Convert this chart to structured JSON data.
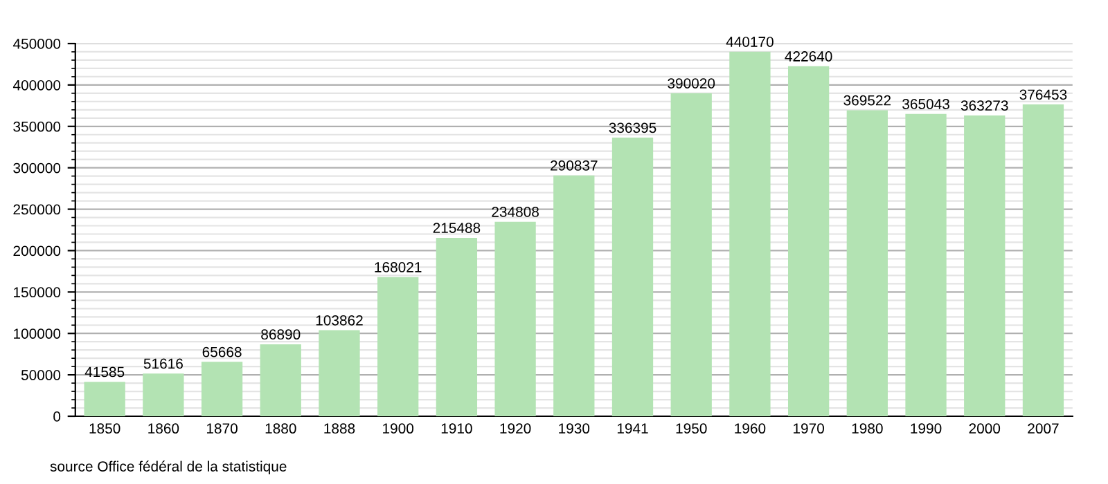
{
  "chart_data": {
    "type": "bar",
    "categories": [
      "1850",
      "1860",
      "1870",
      "1880",
      "1888",
      "1900",
      "1910",
      "1920",
      "1930",
      "1941",
      "1950",
      "1960",
      "1970",
      "1980",
      "1990",
      "2000",
      "2007"
    ],
    "values": [
      41585,
      51616,
      65668,
      86890,
      103862,
      168021,
      215488,
      234808,
      290837,
      336395,
      390020,
      440170,
      422640,
      369522,
      365043,
      363273,
      376453
    ],
    "color": "#b3e3b3",
    "ylim": [
      0,
      450000
    ],
    "yticks": [
      0,
      50000,
      100000,
      150000,
      200000,
      250000,
      300000,
      350000,
      400000,
      450000
    ],
    "grid": "y",
    "data_labels": true,
    "annotations": [
      "source Office fédéral de la statistique"
    ]
  }
}
